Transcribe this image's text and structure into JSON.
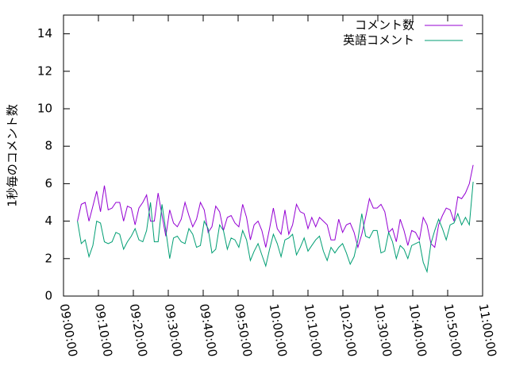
{
  "chart_data": {
    "type": "line",
    "ylabel": "1秒毎のコメント数",
    "x": [
      "09:04:00",
      "09:05:06",
      "09:06:12",
      "09:07:18",
      "09:08:24",
      "09:09:30",
      "09:10:36",
      "09:11:42",
      "09:12:48",
      "09:13:54",
      "09:15:00",
      "09:16:06",
      "09:17:12",
      "09:18:18",
      "09:19:24",
      "09:20:30",
      "09:21:36",
      "09:22:42",
      "09:23:48",
      "09:24:54",
      "09:26:00",
      "09:27:06",
      "09:28:12",
      "09:29:18",
      "09:30:24",
      "09:31:30",
      "09:32:36",
      "09:33:42",
      "09:34:48",
      "09:35:54",
      "09:37:00",
      "09:38:06",
      "09:39:12",
      "09:40:18",
      "09:41:24",
      "09:42:30",
      "09:43:36",
      "09:44:42",
      "09:45:48",
      "09:46:54",
      "09:48:00",
      "09:49:06",
      "09:50:12",
      "09:51:18",
      "09:52:24",
      "09:53:30",
      "09:54:36",
      "09:55:42",
      "09:56:48",
      "09:57:54",
      "09:59:00",
      "10:00:06",
      "10:01:12",
      "10:02:18",
      "10:03:24",
      "10:04:30",
      "10:05:36",
      "10:06:42",
      "10:07:48",
      "10:08:54",
      "10:10:00",
      "10:11:06",
      "10:12:12",
      "10:13:18",
      "10:14:24",
      "10:15:30",
      "10:16:36",
      "10:17:42",
      "10:18:48",
      "10:19:54",
      "10:21:00",
      "10:22:06",
      "10:23:12",
      "10:24:18",
      "10:25:24",
      "10:26:30",
      "10:27:36",
      "10:28:42",
      "10:29:48",
      "10:30:54",
      "10:32:00",
      "10:33:06",
      "10:34:12",
      "10:35:18",
      "10:36:24",
      "10:37:30",
      "10:38:36",
      "10:39:42",
      "10:40:48",
      "10:41:54",
      "10:43:00",
      "10:44:06",
      "10:45:12",
      "10:46:18",
      "10:47:24",
      "10:48:30",
      "10:49:36",
      "10:50:42",
      "10:51:48",
      "10:52:54",
      "10:54:00",
      "10:55:06",
      "10:56:12",
      "10:57:18"
    ],
    "series": [
      {
        "name": "コメント数",
        "color": "#9400d3",
        "values": [
          4.0,
          4.9,
          5.0,
          4.0,
          4.8,
          5.6,
          4.5,
          5.9,
          4.6,
          4.7,
          5.0,
          5.0,
          4.0,
          4.8,
          4.7,
          3.8,
          4.7,
          5.0,
          5.4,
          4.0,
          4.0,
          5.5,
          4.3,
          3.2,
          4.6,
          3.9,
          3.7,
          4.1,
          5.0,
          4.3,
          3.7,
          4.1,
          5.0,
          4.6,
          3.4,
          3.7,
          4.8,
          4.5,
          3.5,
          4.2,
          4.3,
          3.9,
          3.7,
          4.9,
          4.2,
          3.0,
          3.8,
          4.0,
          3.5,
          2.6,
          3.6,
          4.7,
          3.6,
          3.3,
          4.6,
          3.3,
          3.8,
          4.9,
          4.5,
          4.4,
          3.6,
          4.2,
          3.7,
          4.2,
          4.0,
          3.8,
          3.0,
          3.0,
          4.1,
          3.4,
          3.8,
          3.9,
          3.4,
          2.6,
          3.3,
          4.2,
          5.2,
          4.7,
          4.7,
          4.9,
          4.5,
          3.4,
          3.6,
          2.9,
          4.1,
          3.5,
          2.7,
          3.5,
          3.4,
          3.0,
          4.2,
          3.8,
          2.8,
          2.6,
          3.8,
          4.3,
          4.7,
          4.6,
          4.0,
          5.3,
          5.2,
          5.5,
          6.0,
          7.0
        ]
      },
      {
        "name": "英語コメント",
        "color": "#009e73",
        "values": [
          4.0,
          2.8,
          3.0,
          2.1,
          2.7,
          4.0,
          3.9,
          2.9,
          2.8,
          2.9,
          3.4,
          3.3,
          2.5,
          2.9,
          3.2,
          3.6,
          3.0,
          2.9,
          3.5,
          5.0,
          2.9,
          2.9,
          4.9,
          3.5,
          2.0,
          3.1,
          3.2,
          2.9,
          2.8,
          3.6,
          3.3,
          2.6,
          2.7,
          4.0,
          3.6,
          2.3,
          2.5,
          3.8,
          3.5,
          2.5,
          3.1,
          3.0,
          2.6,
          3.5,
          3.0,
          1.9,
          2.4,
          2.8,
          2.2,
          1.6,
          2.5,
          3.3,
          2.8,
          2.1,
          3.0,
          3.1,
          3.3,
          2.2,
          2.6,
          3.1,
          2.4,
          2.7,
          3.0,
          3.2,
          2.4,
          1.9,
          2.6,
          2.3,
          2.6,
          2.8,
          2.3,
          1.7,
          2.1,
          3.0,
          4.4,
          3.2,
          3.1,
          3.5,
          3.5,
          2.3,
          2.4,
          3.4,
          2.9,
          2.0,
          2.7,
          2.5,
          2.0,
          2.7,
          2.8,
          2.9,
          1.8,
          1.3,
          2.8,
          3.5,
          4.1,
          3.6,
          3.0,
          3.8,
          3.9,
          4.4,
          3.8,
          4.2,
          3.8,
          6.1
        ]
      }
    ],
    "xlim": [
      "09:00:00",
      "11:00:00"
    ],
    "xticks": [
      "09:00:00",
      "09:10:00",
      "09:20:00",
      "09:30:00",
      "09:40:00",
      "09:50:00",
      "10:00:00",
      "10:10:00",
      "10:20:00",
      "10:30:00",
      "10:40:00",
      "10:50:00",
      "11:00:00"
    ],
    "ylim": [
      0,
      15
    ],
    "yticks": [
      0,
      2,
      4,
      6,
      8,
      10,
      12,
      14
    ],
    "legend": "top-right"
  }
}
